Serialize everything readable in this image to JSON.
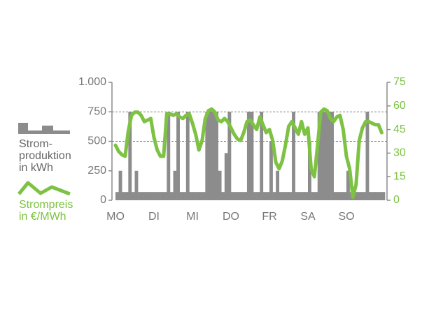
{
  "chart_data": {
    "type": "bar-line",
    "xlim": [
      0,
      168
    ],
    "xticks": [
      {
        "value": 0,
        "label": "MO"
      },
      {
        "value": 24,
        "label": "DI"
      },
      {
        "value": 48,
        "label": "MI"
      },
      {
        "value": 72,
        "label": "DO"
      },
      {
        "value": 96,
        "label": "FR"
      },
      {
        "value": 120,
        "label": "SA"
      },
      {
        "value": 144,
        "label": "SO"
      }
    ],
    "x": [
      0,
      2,
      4,
      6,
      8,
      10,
      12,
      14,
      16,
      18,
      20,
      22,
      24,
      26,
      28,
      30,
      32,
      34,
      36,
      38,
      40,
      42,
      44,
      46,
      48,
      50,
      52,
      54,
      56,
      58,
      60,
      62,
      64,
      66,
      68,
      70,
      72,
      74,
      76,
      78,
      80,
      82,
      84,
      86,
      88,
      90,
      92,
      94,
      96,
      98,
      100,
      102,
      104,
      106,
      108,
      110,
      112,
      114,
      116,
      118,
      120,
      122,
      124,
      126,
      128,
      130,
      132,
      134,
      136,
      138,
      140,
      142,
      144,
      146,
      148,
      150,
      152,
      154,
      156,
      158,
      160,
      162,
      164,
      166
    ],
    "ylim": [
      0,
      1000
    ],
    "yticks": [
      0,
      250,
      500,
      750,
      {
        "value": 1000,
        "label": "1.000"
      }
    ],
    "y2lim": [
      0,
      75
    ],
    "y2ticks": [
      0,
      15,
      30,
      45,
      60,
      75
    ],
    "grid": {
      "axis": "y",
      "values": [
        500,
        750
      ],
      "style": "dashed"
    },
    "series": [
      {
        "name": "Strom-\nproduktion\nin kWh",
        "color": "#8c8c8c",
        "kind": "bar",
        "axis": "y",
        "values": [
          70,
          250,
          70,
          70,
          750,
          70,
          250,
          70,
          70,
          70,
          70,
          70,
          70,
          70,
          70,
          70,
          750,
          70,
          250,
          750,
          70,
          70,
          750,
          70,
          70,
          70,
          70,
          70,
          750,
          750,
          750,
          750,
          250,
          70,
          400,
          750,
          70,
          70,
          70,
          70,
          70,
          750,
          750,
          70,
          70,
          750,
          70,
          70,
          500,
          70,
          250,
          70,
          70,
          70,
          70,
          750,
          70,
          70,
          70,
          70,
          500,
          70,
          70,
          750,
          750,
          750,
          750,
          750,
          70,
          70,
          70,
          70,
          250,
          70,
          70,
          70,
          70,
          70,
          750,
          70,
          70,
          70,
          70,
          70
        ]
      },
      {
        "name": "Strompreis\nin €/MWh",
        "color": "#7dc242",
        "kind": "line",
        "axis": "y2",
        "values": [
          35,
          31,
          29,
          28,
          44,
          54,
          56,
          56,
          54,
          50,
          51,
          52,
          40,
          32,
          28,
          28,
          55,
          55,
          54,
          55,
          53,
          52,
          54,
          55,
          49,
          42,
          32,
          38,
          52,
          57,
          58,
          56,
          51,
          50,
          52,
          50,
          46,
          42,
          39,
          38,
          43,
          50,
          51,
          48,
          45,
          53,
          48,
          43,
          45,
          38,
          24,
          20,
          25,
          35,
          47,
          50,
          46,
          42,
          50,
          42,
          46,
          20,
          15,
          35,
          56,
          58,
          57,
          52,
          50,
          53,
          54,
          45,
          28,
          20,
          2,
          10,
          38,
          46,
          50,
          50,
          49,
          48,
          48,
          43
        ]
      }
    ]
  }
}
